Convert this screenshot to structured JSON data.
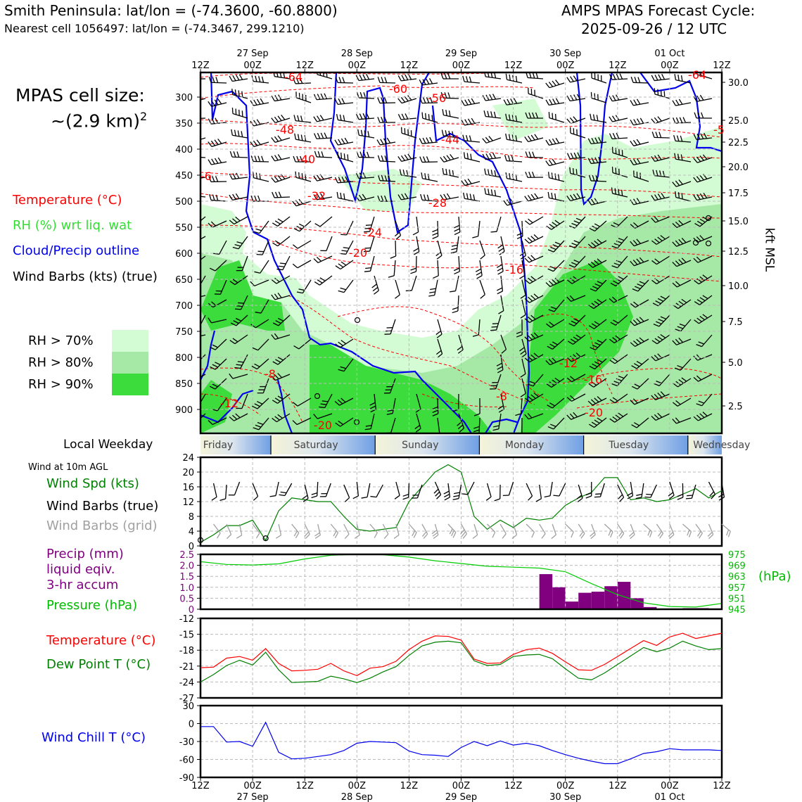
{
  "header": {
    "location_title": "Smith Peninsula: lat/lon = (-74.3600, -60.8800)",
    "nearest_cell": "Nearest cell 1056497: lat/lon = (-74.3467, 299.1210)",
    "forecast_title": "AMPS MPAS Forecast Cycle:",
    "forecast_cycle": "2025-09-26 / 12 UTC"
  },
  "cell_size": {
    "label": "MPAS cell size:",
    "value": "~(2.9 km)",
    "sup": "2"
  },
  "legend_top": {
    "temperature": "Temperature (°C)",
    "rh": "RH (%) wrt liq. wat",
    "cloud": "Cloud/Precip outline",
    "wind": "Wind Barbs (kts) (true)",
    "rh_levels": [
      "RH > 70%",
      "RH > 80%",
      "RH > 90%"
    ]
  },
  "colors": {
    "rh70": "#d4fcd4",
    "rh80": "#a6e8a6",
    "rh90": "#3cdc3c",
    "temperature": "#ff0000",
    "cloud": "#0000ee",
    "wind_speed": "#008000",
    "wind_grid": "#a0a0a0",
    "precip": "#800080",
    "pressure": "#00cc00",
    "dewpoint": "#008000",
    "windchill": "#0000ee",
    "weekday_band": "#7aa6e6"
  },
  "time_axis": {
    "top_dates": [
      "27 Sep",
      "28 Sep",
      "29 Sep",
      "30 Sep",
      "01 Oct"
    ],
    "ticks": [
      "12Z",
      "00Z",
      "12Z",
      "00Z",
      "12Z",
      "00Z",
      "12Z",
      "00Z",
      "12Z",
      "00Z",
      "12Z"
    ]
  },
  "pressure_axis": {
    "ticks": [
      "300",
      "350",
      "400",
      "450",
      "500",
      "550",
      "600",
      "650",
      "700",
      "750",
      "800",
      "850",
      "900"
    ],
    "right_ticks": [
      "30.0",
      "25.0",
      "22.5",
      "20.0",
      "17.5",
      "15.0",
      "12.5",
      "10.0",
      "7.5",
      "5.0",
      "2.5"
    ],
    "right_label": "kft MSL"
  },
  "isotherm_labels": [
    "-64",
    "-60",
    "-56",
    "-48",
    "-44",
    "-40",
    "-32",
    "-28",
    "-24",
    "-20",
    "-16",
    "-12",
    "-8",
    "-16",
    "-20",
    "-8",
    "-12",
    "-20",
    "-6",
    "-5",
    "-64"
  ],
  "weekday": {
    "label": "Local Weekday",
    "days": [
      "Friday",
      "Saturday",
      "Sunday",
      "Monday",
      "Tuesday",
      "Wednesday"
    ]
  },
  "wind_panel": {
    "title": "Wind at 10m AGL",
    "speed_label": "Wind Spd (kts)",
    "barbs_true_label": "Wind Barbs (true)",
    "barbs_grid_label": "Wind Barbs (grid)",
    "yticks": [
      "24",
      "20",
      "16",
      "12",
      "8",
      "4",
      "0"
    ]
  },
  "precip_panel": {
    "precip_label_1": "Precip (mm)",
    "precip_label_2": "liquid eqiv.",
    "precip_label_3": "3-hr accum",
    "pressure_label": "Pressure (hPa)",
    "left_ticks": [
      "2.5",
      "2.0",
      "1.5",
      "1.0",
      "0.5",
      "0"
    ],
    "right_ticks": [
      "975",
      "969",
      "963",
      "957",
      "951",
      "945"
    ],
    "right_unit": "(hPa)"
  },
  "temp_panel": {
    "temp_label": "Temperature (°C)",
    "dew_label": "Dew Point T (°C)",
    "yticks": [
      "-12",
      "-15",
      "-18",
      "-21",
      "-24",
      "-27"
    ]
  },
  "chill_panel": {
    "label": "Wind Chill T (°C)",
    "yticks": [
      "30",
      "0",
      "-30",
      "-60",
      "-90"
    ]
  },
  "chart_data": [
    {
      "type": "line",
      "title": "Wind Spd (kts)",
      "x_hours": [
        0,
        3,
        6,
        9,
        12,
        15,
        18,
        21,
        24,
        27,
        30,
        33,
        36,
        39,
        42,
        45,
        48,
        51,
        54,
        57,
        60,
        63,
        66,
        69,
        72,
        75,
        78,
        81,
        84,
        87,
        90,
        93,
        96,
        99,
        102,
        105,
        108,
        111,
        114,
        117,
        120
      ],
      "values": [
        1,
        3,
        5.5,
        5.5,
        7,
        1.5,
        9.5,
        13,
        12.5,
        12,
        12,
        8,
        4.5,
        4,
        4.5,
        5,
        12,
        16,
        20,
        22,
        20,
        8,
        4.5,
        7,
        5,
        7.5,
        7,
        7.5,
        11,
        13,
        14.5,
        18.5,
        18.5,
        12.5,
        13,
        12,
        12.5,
        14,
        15.5,
        13,
        15
      ],
      "ylim": [
        0,
        24
      ]
    },
    {
      "type": "bar",
      "title": "Precip (mm) liquid eqiv. 3-hr accum",
      "x_hours": [
        78,
        81,
        84,
        87,
        90,
        93,
        96,
        99,
        102,
        105,
        108,
        111,
        114,
        117
      ],
      "values": [
        1.6,
        1.0,
        0.35,
        0.75,
        0.8,
        1.05,
        1.25,
        0.5,
        0.1,
        0.02,
        0.02,
        0.05,
        0.05,
        0.02
      ],
      "ylim": [
        0,
        2.5
      ]
    },
    {
      "type": "line",
      "title": "Pressure (hPa)",
      "x_hours": [
        0,
        6,
        12,
        18,
        24,
        30,
        36,
        42,
        48,
        54,
        60,
        66,
        72,
        78,
        84,
        90,
        96,
        102,
        108,
        114,
        120
      ],
      "values": [
        971,
        969.5,
        969.2,
        969.8,
        972.5,
        974.5,
        975,
        974.8,
        973.5,
        971.5,
        970,
        968.5,
        968,
        967.5,
        965.5,
        959,
        953,
        948.5,
        946.5,
        946.2,
        948.2
      ],
      "ylim": [
        945,
        975
      ]
    },
    {
      "type": "line",
      "title": "Temperature (°C) / Dew Point T (°C)",
      "x_hours": [
        0,
        3,
        6,
        9,
        12,
        15,
        18,
        21,
        24,
        27,
        30,
        33,
        36,
        39,
        42,
        45,
        48,
        51,
        54,
        57,
        60,
        63,
        66,
        69,
        72,
        75,
        78,
        81,
        84,
        87,
        90,
        93,
        96,
        99,
        102,
        105,
        108,
        111,
        114,
        117,
        120
      ],
      "series": [
        {
          "name": "Temperature (°C)",
          "values": [
            -21.3,
            -21.2,
            -19.5,
            -19.2,
            -19.9,
            -17.7,
            -20.5,
            -21.9,
            -21.8,
            -21.6,
            -20.5,
            -21.9,
            -22.8,
            -21.4,
            -21.1,
            -20.1,
            -17.9,
            -16.3,
            -15.3,
            -15.4,
            -16.1,
            -19.7,
            -20.5,
            -20.4,
            -18.8,
            -17.9,
            -17.6,
            -18.6,
            -20.2,
            -21.7,
            -21.8,
            -20.7,
            -19.2,
            -17.7,
            -16.2,
            -17.1,
            -15.5,
            -14.8,
            -15.8,
            -15.3,
            -14.8
          ]
        },
        {
          "name": "Dew Point T (°C)",
          "values": [
            -24.0,
            -22.6,
            -20.9,
            -19.9,
            -20.8,
            -18.4,
            -21.7,
            -24.1,
            -24.0,
            -23.9,
            -22.9,
            -23.4,
            -24.1,
            -23.3,
            -22.1,
            -21.1,
            -19.0,
            -17.2,
            -16.5,
            -16.3,
            -16.6,
            -20.0,
            -20.9,
            -20.7,
            -19.2,
            -18.9,
            -18.8,
            -19.6,
            -21.5,
            -23.3,
            -23.6,
            -22.3,
            -20.7,
            -19.1,
            -17.5,
            -18.3,
            -17.6,
            -16.3,
            -17.2,
            -17.9,
            -17.7
          ]
        }
      ],
      "ylim": [
        -27,
        -12
      ]
    },
    {
      "type": "line",
      "title": "Wind Chill T (°C)",
      "x_hours": [
        0,
        3,
        6,
        9,
        12,
        15,
        18,
        21,
        24,
        27,
        30,
        33,
        36,
        39,
        42,
        45,
        48,
        51,
        54,
        57,
        60,
        63,
        66,
        69,
        72,
        75,
        78,
        81,
        84,
        87,
        90,
        93,
        96,
        99,
        102,
        105,
        108,
        111,
        114,
        117,
        120
      ],
      "values": [
        -5,
        -5,
        -31,
        -30,
        -38,
        2,
        -48,
        -59,
        -58,
        -55,
        -52,
        -45,
        -33,
        -30,
        -31,
        -32,
        -46,
        -52,
        -53,
        -55,
        -40,
        -30,
        -37,
        -29,
        -36,
        -33,
        -37,
        -45,
        -52,
        -58,
        -63,
        -67,
        -67,
        -59,
        -50,
        -47,
        -42,
        -44,
        -44,
        -44,
        -45
      ],
      "ylim": [
        -90,
        30
      ]
    }
  ]
}
